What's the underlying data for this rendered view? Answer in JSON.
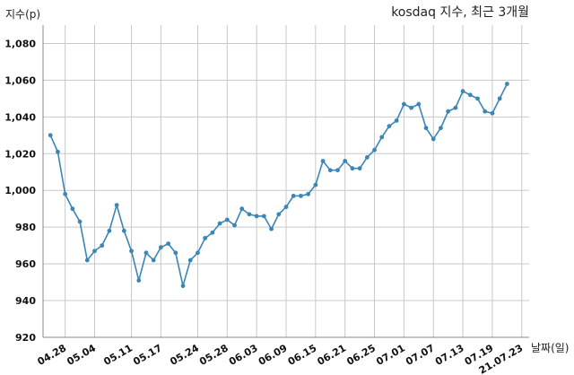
{
  "chart_data": {
    "type": "line",
    "title": "kosdaq 지수, 최근 3개월",
    "xlabel": "날짜(일)",
    "ylabel": "지수(p)",
    "ylim": [
      920,
      1090
    ],
    "y_ticks": [
      920,
      940,
      960,
      980,
      1000,
      1020,
      1040,
      1060,
      1080
    ],
    "y_tick_labels": [
      "920",
      "940",
      "960",
      "980",
      "1,000",
      "1,020",
      "1,040",
      "1,060",
      "1,080"
    ],
    "x_tick_labels": [
      "04.28",
      "05.04",
      "05.11",
      "05.17",
      "05.24",
      "05.28",
      "06.03",
      "06.09",
      "06.15",
      "06.21",
      "06.25",
      "07.01",
      "07.07",
      "07.13",
      "07.19",
      "21.07.23"
    ],
    "x_tick_indices": [
      3,
      7,
      12,
      16,
      21,
      25,
      29,
      33,
      37,
      41,
      45,
      49,
      53,
      57,
      61,
      65
    ],
    "grid": true,
    "series": [
      {
        "color": "#3a86b5",
        "values": [
          1030,
          1021,
          998,
          990,
          983,
          962,
          967,
          970,
          978,
          992,
          978,
          967,
          951,
          966,
          962,
          969,
          971,
          966,
          948,
          962,
          966,
          974,
          977,
          982,
          984,
          981,
          990,
          987,
          986,
          986,
          979,
          987,
          991,
          997,
          997,
          998,
          1003,
          1016,
          1011,
          1011,
          1016,
          1012,
          1012,
          1018,
          1022,
          1029,
          1035,
          1038,
          1047,
          1045,
          1047,
          1034,
          1028,
          1034,
          1043,
          1045,
          1054,
          1052,
          1050,
          1043,
          1042,
          1050,
          1058
        ]
      }
    ]
  }
}
